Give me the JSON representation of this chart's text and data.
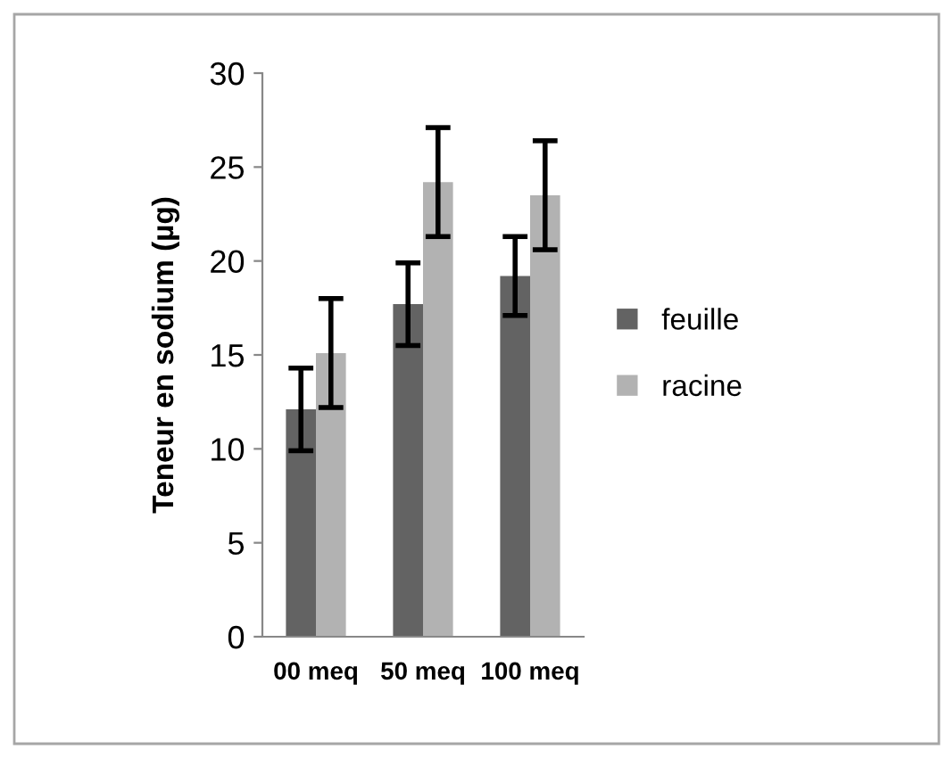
{
  "chart_data": {
    "type": "bar",
    "ylabel": "Teneur en sodium (µg)",
    "categories": [
      "00 meq",
      "50 meq",
      "100 meq"
    ],
    "series": [
      {
        "name": "feuille",
        "color": "#636363",
        "values": [
          12.1,
          17.7,
          19.2
        ],
        "errors": [
          2.2,
          2.2,
          2.1
        ]
      },
      {
        "name": "racine",
        "color": "#b2b2b2",
        "values": [
          15.1,
          24.2,
          23.5
        ],
        "errors": [
          2.9,
          2.9,
          2.9
        ]
      }
    ],
    "ylim": [
      0,
      30
    ],
    "yticks": [
      0,
      5,
      10,
      15,
      20,
      25,
      30
    ],
    "grid": false,
    "legend": "right"
  }
}
